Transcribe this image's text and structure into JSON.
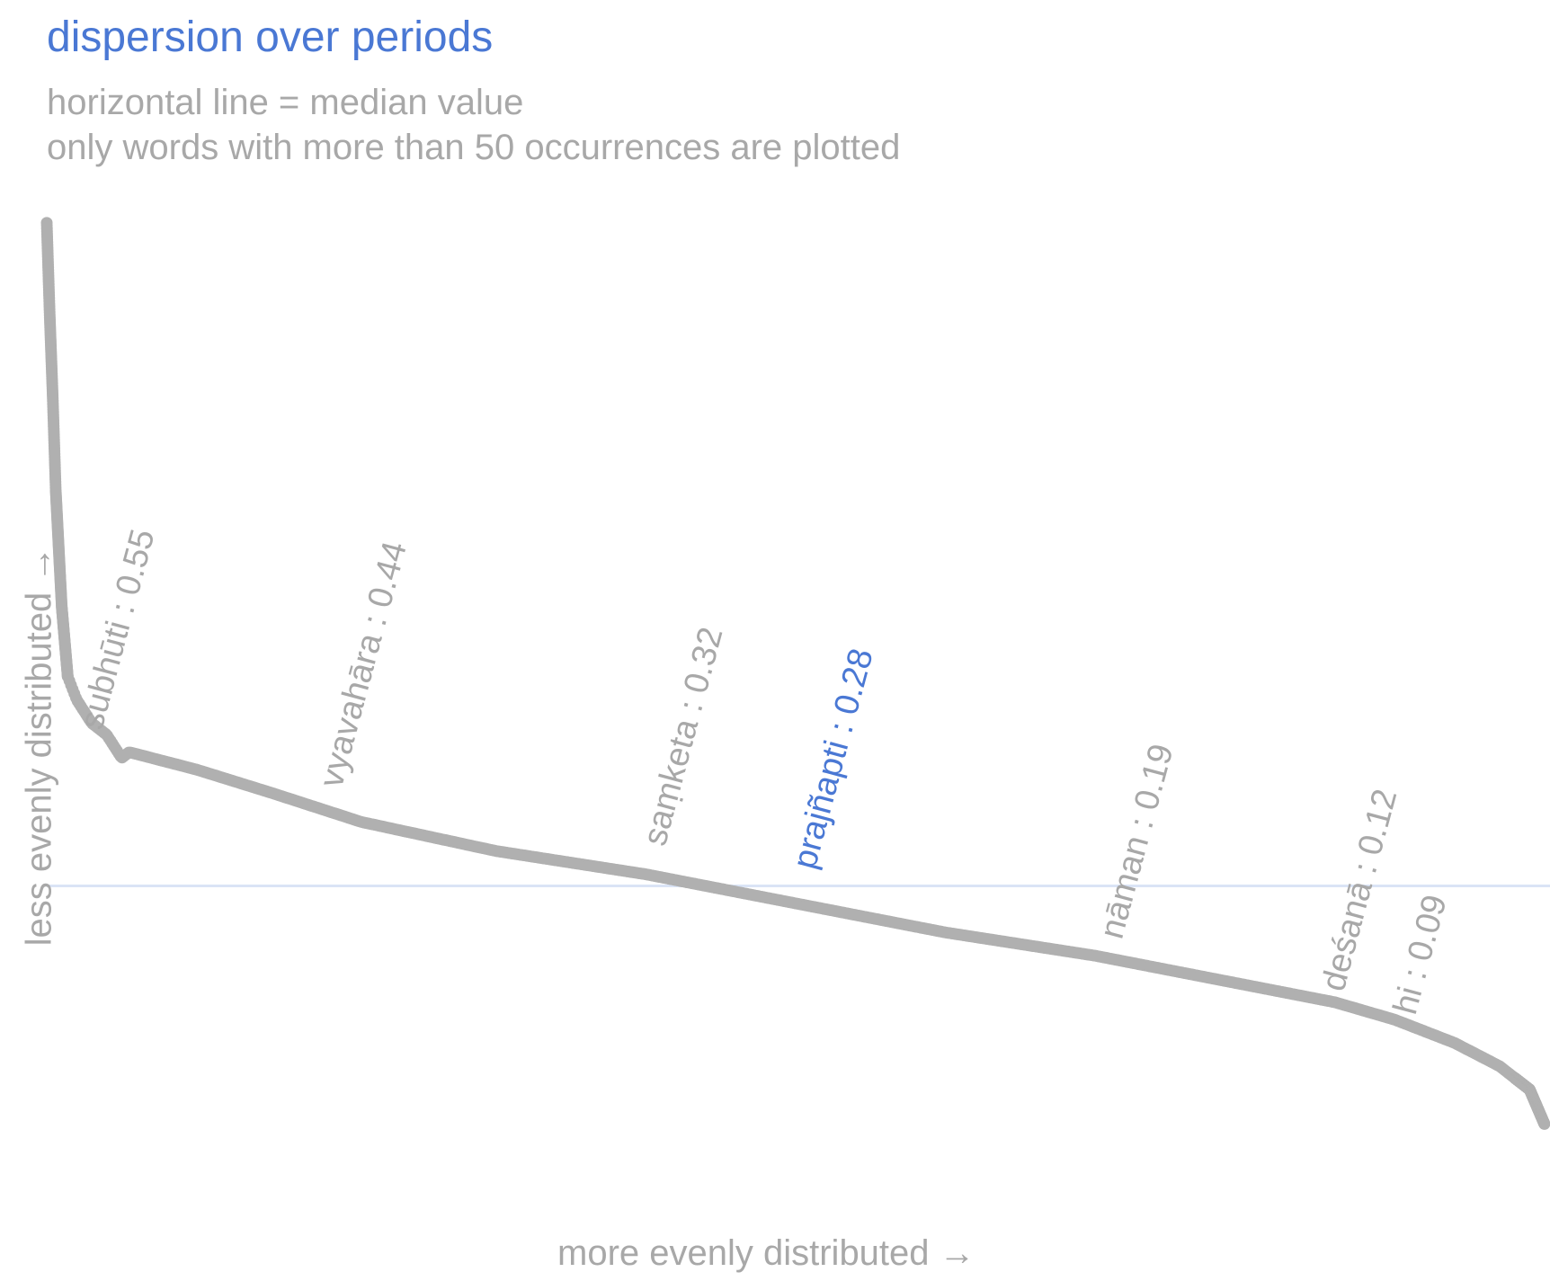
{
  "chart_data": {
    "type": "scatter",
    "title": "dispersion over periods",
    "subtitle_lines": [
      "horizontal line = median value",
      "only words with more than 50 occurrences are plotted"
    ],
    "xlabel": "more evenly distributed →",
    "ylabel": "less evenly distributed →",
    "median_line": 0.26,
    "ylim": [
      0.0,
      0.85
    ],
    "xlim": [
      0,
      1000
    ],
    "colors": {
      "points": "#b0b0b0",
      "labels": "#a8a8a8",
      "highlight": "#4a78d4",
      "median_line": "#dae4f6"
    },
    "curve": [
      {
        "x": 0,
        "y": 0.83
      },
      {
        "x": 2,
        "y": 0.75
      },
      {
        "x": 4,
        "y": 0.68
      },
      {
        "x": 6,
        "y": 0.6
      },
      {
        "x": 10,
        "y": 0.5
      },
      {
        "x": 14,
        "y": 0.44
      },
      {
        "x": 20,
        "y": 0.42
      },
      {
        "x": 30,
        "y": 0.4
      },
      {
        "x": 40,
        "y": 0.39
      },
      {
        "x": 50,
        "y": 0.37
      },
      {
        "x": 55,
        "y": 0.375
      },
      {
        "x": 70,
        "y": 0.37
      },
      {
        "x": 100,
        "y": 0.36
      },
      {
        "x": 150,
        "y": 0.34
      },
      {
        "x": 210,
        "y": 0.315
      },
      {
        "x": 300,
        "y": 0.29
      },
      {
        "x": 400,
        "y": 0.27
      },
      {
        "x": 480,
        "y": 0.25
      },
      {
        "x": 520,
        "y": 0.24
      },
      {
        "x": 600,
        "y": 0.22
      },
      {
        "x": 700,
        "y": 0.2
      },
      {
        "x": 800,
        "y": 0.175
      },
      {
        "x": 860,
        "y": 0.16
      },
      {
        "x": 900,
        "y": 0.145
      },
      {
        "x": 940,
        "y": 0.125
      },
      {
        "x": 970,
        "y": 0.105
      },
      {
        "x": 990,
        "y": 0.085
      },
      {
        "x": 1000,
        "y": 0.055
      }
    ],
    "annotations": [
      {
        "text": "subhūti : 0.55",
        "x": 33,
        "y": 0.39,
        "highlight": false
      },
      {
        "text": "vyavahāra : 0.44",
        "x": 193,
        "y": 0.34,
        "highlight": false
      },
      {
        "text": "saṃketa : 0.32",
        "x": 409,
        "y": 0.29,
        "highlight": false
      },
      {
        "text": "prajñapti : 0.28",
        "x": 509,
        "y": 0.27,
        "highlight": false,
        "highlight_color": true
      },
      {
        "text": "nāman : 0.19",
        "x": 714,
        "y": 0.21,
        "highlight": false
      },
      {
        "text": "deśanā : 0.12",
        "x": 862,
        "y": 0.165,
        "highlight": false
      },
      {
        "text": "hi : 0.09",
        "x": 910,
        "y": 0.145,
        "highlight": false
      }
    ]
  }
}
